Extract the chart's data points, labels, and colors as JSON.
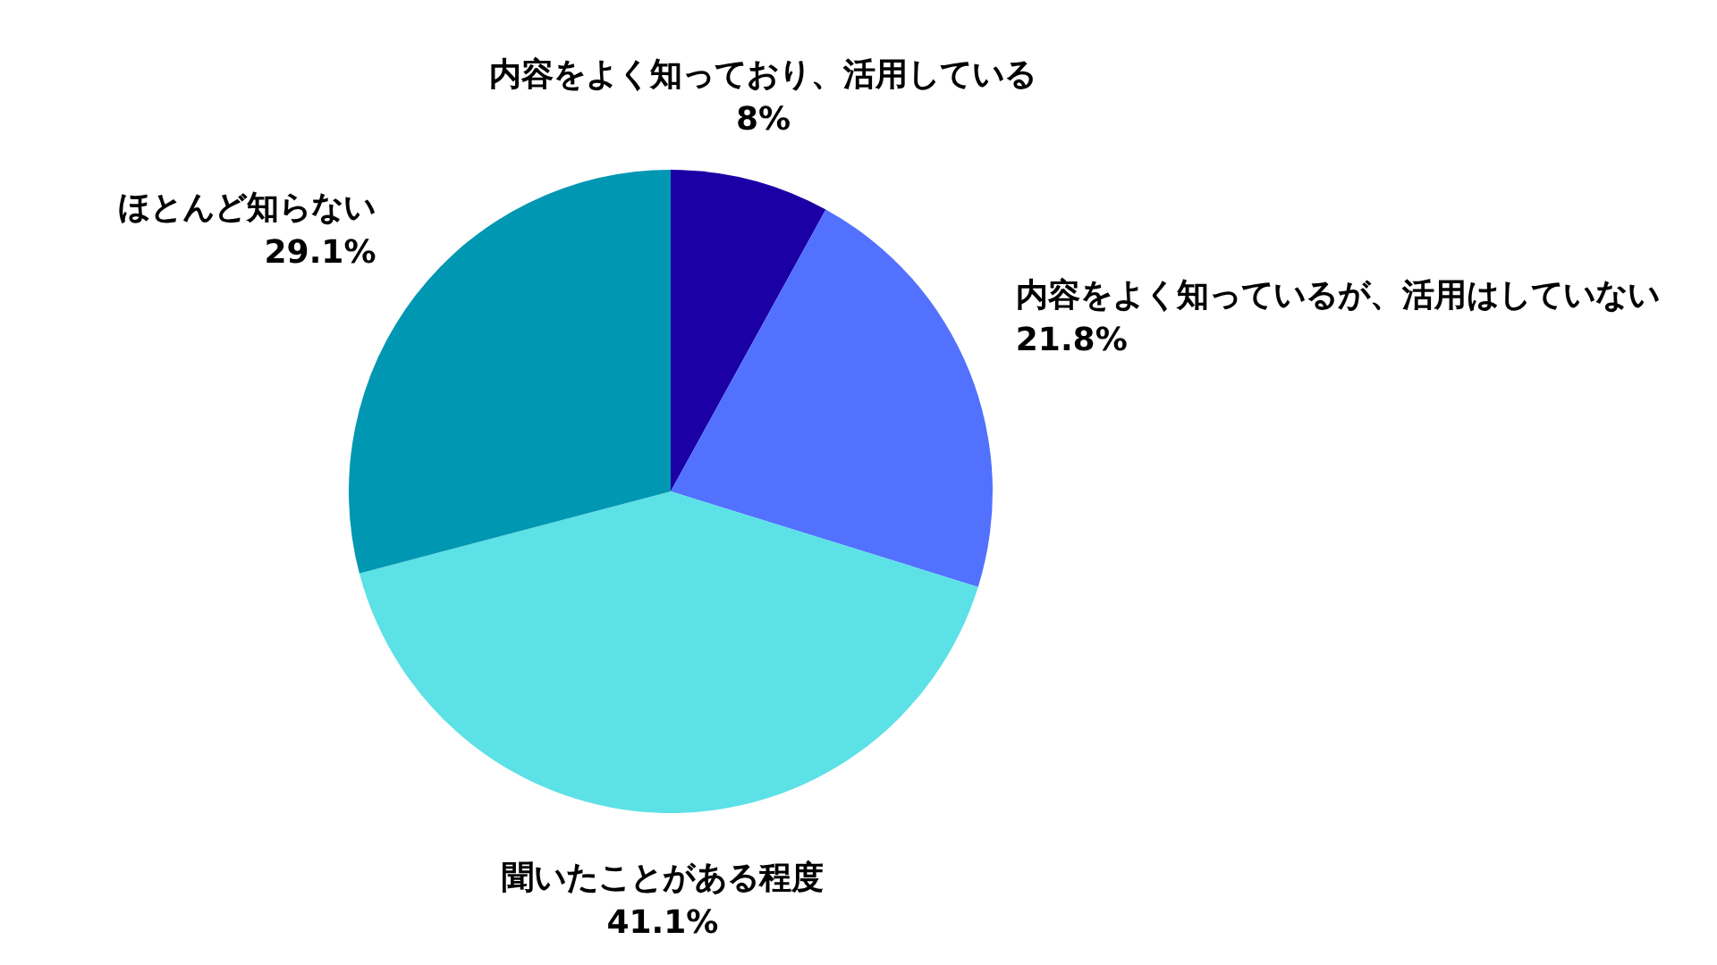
{
  "chart_data": {
    "type": "pie",
    "categories": [
      "内容をよく知っており、活用している",
      "内容をよく知っているが、活用はしていない",
      "聞いたことがある程度",
      "ほとんど知らない"
    ],
    "values": [
      8,
      21.8,
      41.1,
      29.1
    ],
    "value_labels": [
      "8%",
      "21.8%",
      "41.1%",
      "29.1%"
    ],
    "colors": [
      "#1b00a6",
      "#5271ff",
      "#5ce1e6",
      "#0097b2"
    ]
  }
}
